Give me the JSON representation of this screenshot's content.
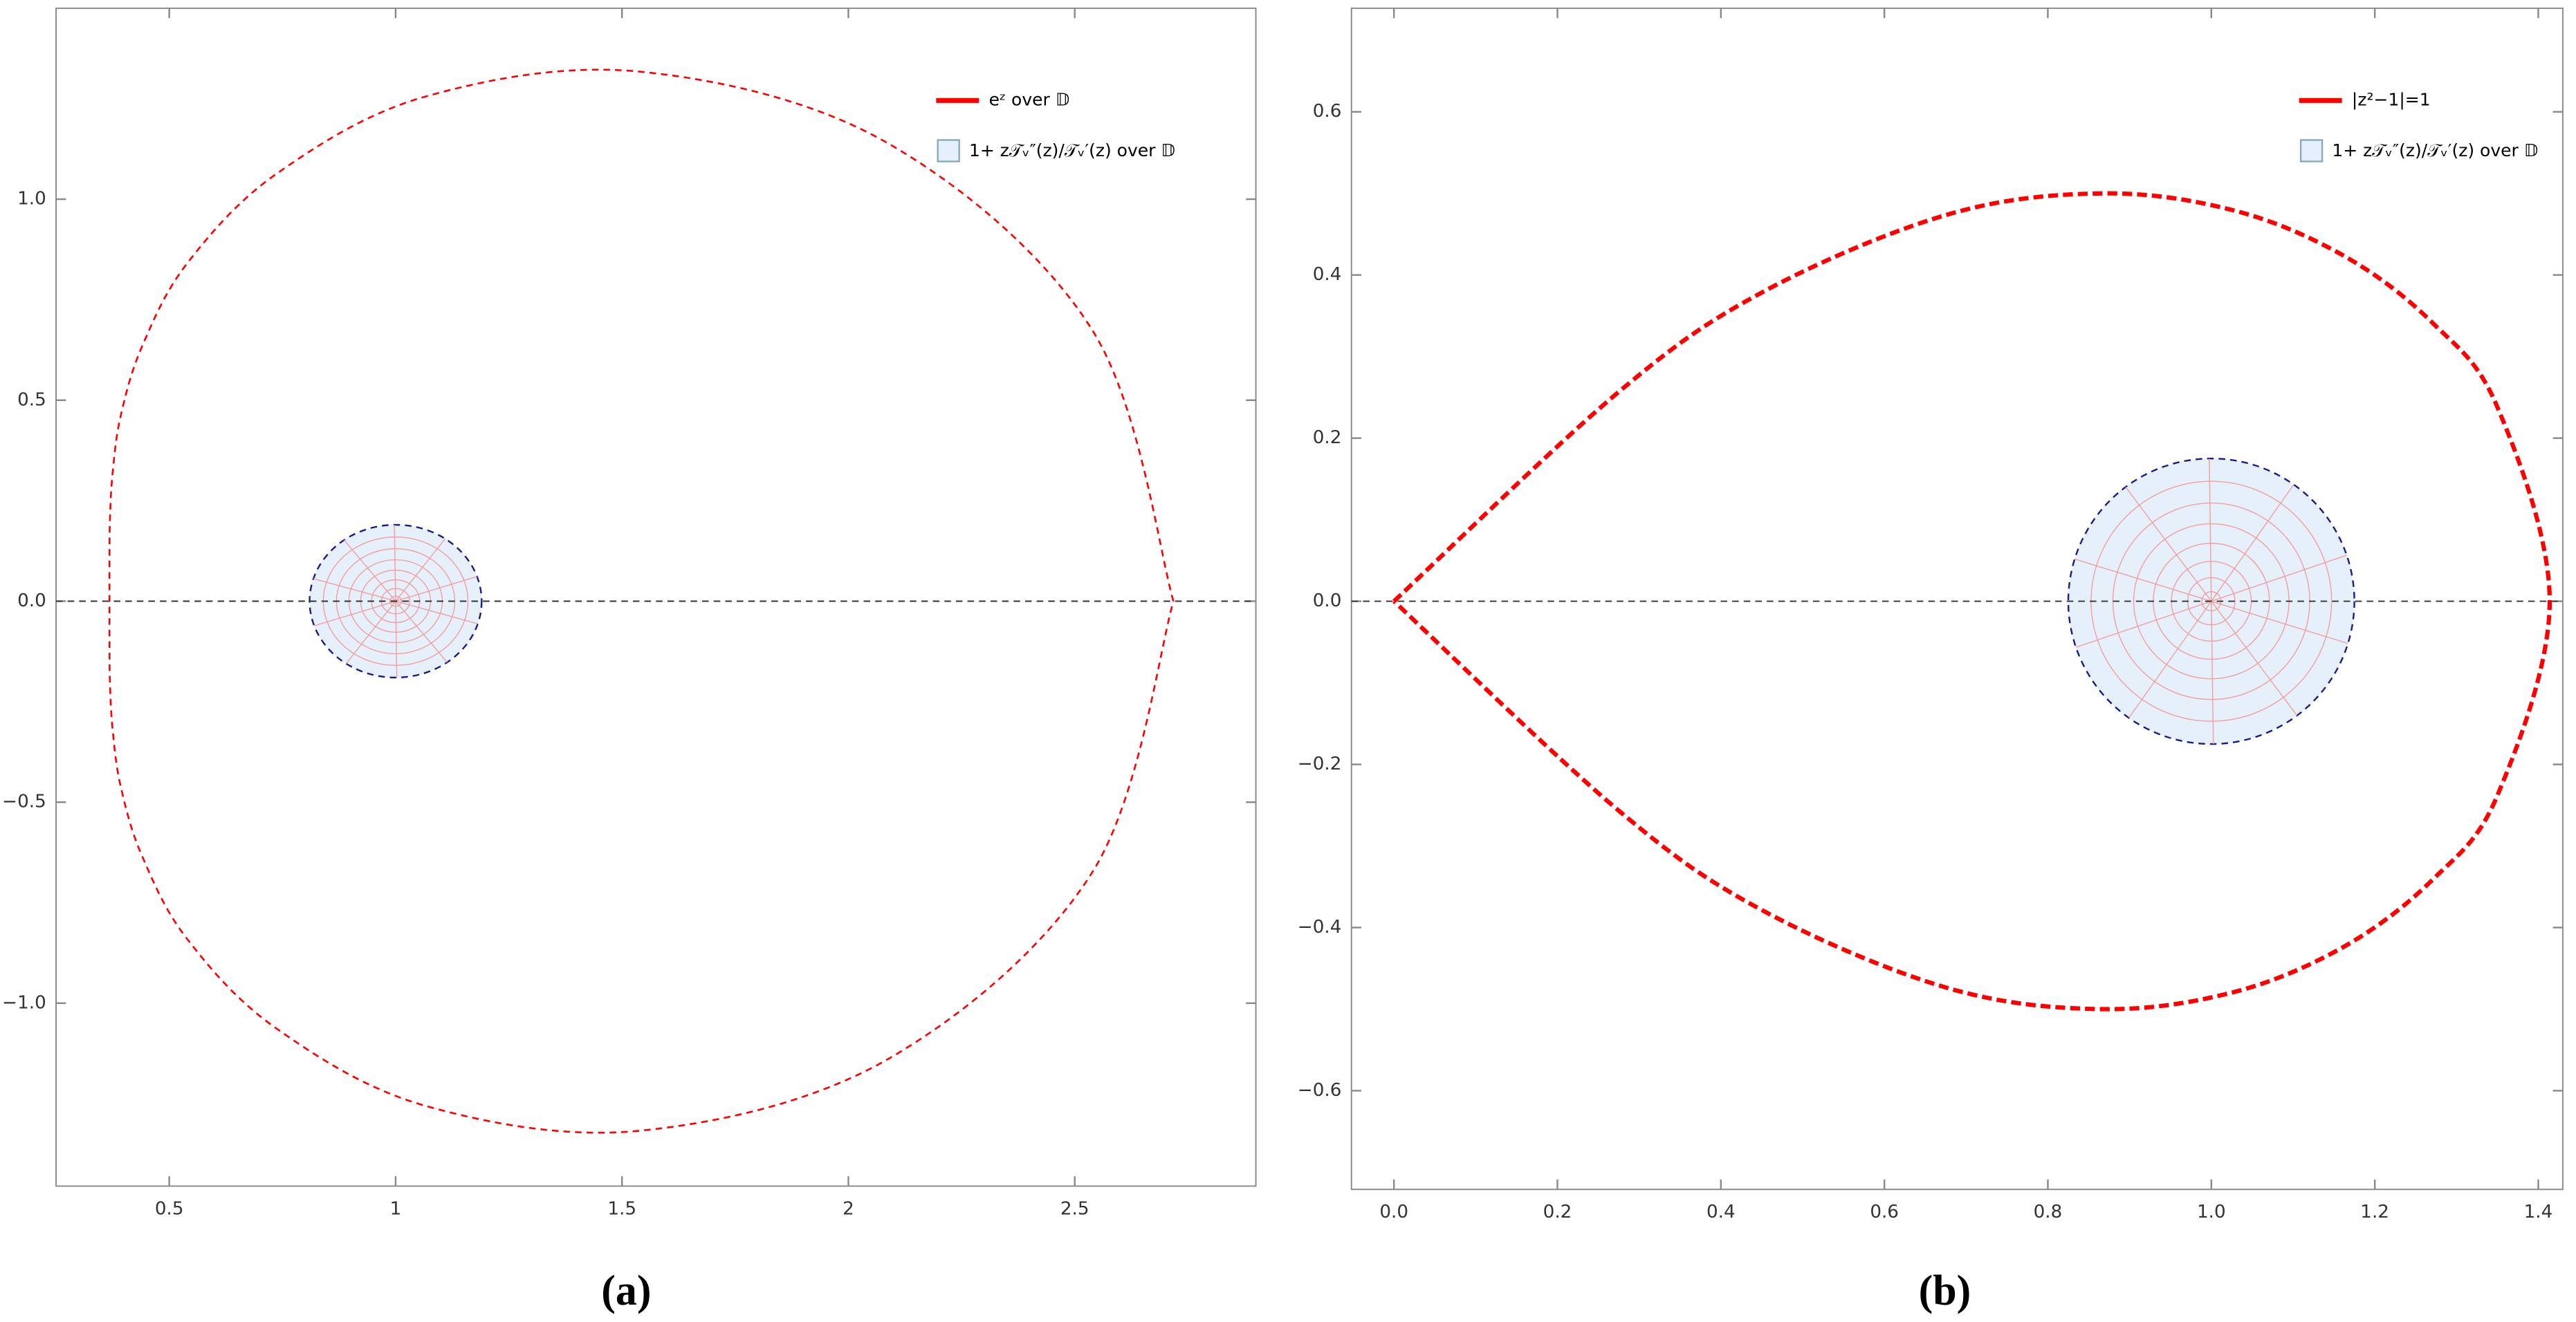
{
  "chart_data": [
    {
      "type": "parametric",
      "caption": "(a)",
      "series": [
        {
          "name": "eᶻ over 𝔻",
          "color": "#ff0000",
          "x": [
            2.718,
            2.54,
            2.086,
            1.542,
            1.068,
            0.738,
            0.54,
            0.44,
            0.393,
            0.375,
            0.369,
            0.368,
            0.368,
            0.368,
            0.369,
            0.375,
            0.393,
            0.44,
            0.54,
            0.738,
            1.068,
            1.542,
            2.086,
            2.54,
            2.718
          ],
          "y": [
            0,
            0.672,
            1.14,
            1.317,
            1.256,
            1.064,
            0.841,
            0.634,
            0.462,
            0.32,
            0.202,
            0.097,
            0,
            -0.097,
            -0.202,
            -0.32,
            -0.462,
            -0.634,
            -0.841,
            -1.064,
            -1.256,
            -1.317,
            -1.14,
            -0.672,
            0
          ]
        }
      ],
      "regions": [
        {
          "name": "1+ z𝒯ᵥ″(z)/𝒯ᵥ′(z) over 𝔻",
          "color": "#e6f0fb",
          "center": [
            1,
            0
          ],
          "radius": 0.19
        }
      ],
      "xlim": [
        0.25,
        2.9
      ],
      "ylim": [
        -1.455,
        1.475
      ],
      "xticks": [
        0.5,
        1.0,
        1.5,
        2.0,
        2.5
      ],
      "yticks": [
        {
          "value": -1,
          "label": "−1.0"
        },
        {
          "value": -0.5,
          "label": "−0.5"
        },
        {
          "value": 0,
          "label": "0.0"
        },
        0.5,
        {
          "value": 1,
          "label": "1.0"
        }
      ],
      "legend": "top-right"
    },
    {
      "type": "parametric",
      "caption": "(b)",
      "series": [
        {
          "name": "|z²−1|=1",
          "color": "#ff0000",
          "x": [
            0,
            0.273,
            0.451,
            0.677,
            0.866,
            1.028,
            1.163,
            1.271,
            1.35,
            1.414,
            1.35,
            1.271,
            1.163,
            1.028,
            0.866,
            0.677,
            0.451,
            0.273,
            0
          ],
          "y": [
            0,
            0.255,
            0.379,
            0.474,
            0.5,
            0.479,
            0.423,
            0.341,
            0.238,
            0,
            -0.238,
            -0.341,
            -0.423,
            -0.479,
            -0.5,
            -0.474,
            -0.379,
            -0.255,
            0
          ]
        }
      ],
      "regions": [
        {
          "name": "1+ z𝒯ᵥ″(z)/𝒯ᵥ′(z) over 𝔻",
          "color": "#e6f0fb",
          "center": [
            1,
            0
          ],
          "radius": 0.175
        }
      ],
      "xlim": [
        -0.052,
        1.43
      ],
      "ylim": [
        -0.721,
        0.727
      ],
      "xticks": [
        {
          "value": 0,
          "label": "0.0"
        },
        0.2,
        0.4,
        0.6,
        0.8,
        {
          "value": 1,
          "label": "1.0"
        },
        1.2,
        1.4
      ],
      "yticks": [
        {
          "value": -0.6,
          "label": "−0.6"
        },
        {
          "value": -0.4,
          "label": "−0.4"
        },
        {
          "value": -0.2,
          "label": "−0.2"
        },
        {
          "value": 0,
          "label": "0.0"
        },
        0.2,
        0.4,
        0.6
      ],
      "legend": "top-right"
    }
  ]
}
